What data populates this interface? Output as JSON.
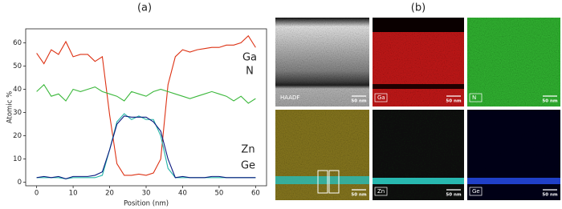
{
  "chart_data": {
    "type": "line",
    "y_label": "Atomic %",
    "x_label": "Position (nm)",
    "x": [
      0,
      2,
      4,
      6,
      8,
      10,
      12,
      14,
      16,
      18,
      20,
      22,
      24,
      26,
      28,
      30,
      32,
      34,
      36,
      38,
      40,
      42,
      44,
      46,
      48,
      50,
      52,
      54,
      56,
      58,
      60
    ],
    "series": [
      {
        "name": "Ga",
        "color": "#dd3214",
        "values": [
          55.5,
          51,
          57,
          55,
          60.5,
          54,
          55,
          55,
          52,
          54,
          29,
          8,
          3,
          3,
          3.5,
          3,
          4,
          10,
          42,
          54,
          57,
          56,
          57,
          57.5,
          58,
          58,
          59,
          59,
          60,
          63,
          58
        ]
      },
      {
        "name": "N",
        "color": "#3cb83c",
        "values": [
          39,
          42,
          37,
          38,
          35,
          40,
          39,
          40,
          41,
          39,
          38,
          37,
          35,
          39,
          38,
          37,
          39,
          40,
          39,
          38,
          37,
          36,
          37,
          38,
          39,
          38,
          37,
          35,
          37,
          34,
          36
        ]
      },
      {
        "name": "Zn",
        "color": "#22b3a6",
        "values": [
          2,
          2,
          2,
          2,
          1.5,
          2,
          2,
          2,
          2,
          3,
          14,
          26,
          29.5,
          27,
          28.5,
          27,
          27,
          20,
          6,
          2,
          2,
          2,
          2,
          2,
          2,
          2,
          2,
          2,
          2,
          2,
          2
        ]
      },
      {
        "name": "Ge",
        "color": "#0b1a80",
        "values": [
          2,
          2.5,
          2,
          2.5,
          1.5,
          2.5,
          2.5,
          2.5,
          3,
          4.5,
          14,
          25,
          28.5,
          28,
          28,
          28,
          26,
          22,
          10,
          2,
          2.5,
          2,
          2,
          2,
          2.5,
          2.5,
          2,
          2,
          2,
          2,
          2
        ]
      }
    ],
    "xlim": [
      -3,
      63
    ],
    "ylim": [
      -1.5,
      66
    ],
    "xticks": [
      0,
      10,
      20,
      30,
      40,
      50,
      60
    ],
    "yticks": [
      0,
      10,
      20,
      30,
      40,
      50,
      60
    ]
  },
  "panel_labels": [
    "(a)",
    "(b)"
  ],
  "eds_maps": {
    "labels": [
      "HAADF",
      "Ga",
      "N",
      "Zn",
      "Ge"
    ],
    "scale_bar": "50 nm"
  }
}
